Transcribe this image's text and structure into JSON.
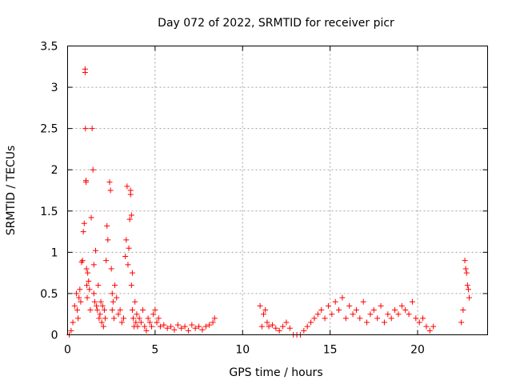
{
  "chart_data": {
    "type": "scatter",
    "title": "Day 072 of 2022, SRMTID for receiver picr",
    "xlabel": "GPS time / hours",
    "ylabel": "SRMTID / TECUs",
    "xlim": [
      0,
      24
    ],
    "ylim": [
      0,
      3.5
    ],
    "xticks": [
      0,
      5,
      10,
      15,
      20
    ],
    "xtick_labels": [
      "0",
      "5",
      "10",
      "15",
      "20"
    ],
    "yticks": [
      0,
      0.5,
      1,
      1.5,
      2,
      2.5,
      3,
      3.5
    ],
    "ytick_labels": [
      "0",
      "0.5",
      "1",
      "1.5",
      "2",
      "2.5",
      "3",
      "3.5"
    ],
    "grid": true,
    "marker": "+",
    "color": "#ff0000",
    "series": [
      {
        "name": "picr",
        "x": [
          0.1,
          0.2,
          0.3,
          0.4,
          0.5,
          0.55,
          0.6,
          0.65,
          0.7,
          0.75,
          0.8,
          0.85,
          0.9,
          0.95,
          1.0,
          1.0,
          1.02,
          1.05,
          1.05,
          1.08,
          1.1,
          1.12,
          1.15,
          1.2,
          1.25,
          1.3,
          1.35,
          1.4,
          1.45,
          1.5,
          1.5,
          1.55,
          1.6,
          1.65,
          1.7,
          1.75,
          1.8,
          1.85,
          1.9,
          1.95,
          2.0,
          2.05,
          2.1,
          2.15,
          2.2,
          2.25,
          2.3,
          2.4,
          2.45,
          2.5,
          2.55,
          2.55,
          2.6,
          2.65,
          2.7,
          2.8,
          2.9,
          3.0,
          3.1,
          3.2,
          3.3,
          3.35,
          3.4,
          3.45,
          3.5,
          3.55,
          3.6,
          3.6,
          3.65,
          3.65,
          3.7,
          3.7,
          3.75,
          3.8,
          3.85,
          3.9,
          3.95,
          4.0,
          4.1,
          4.2,
          4.3,
          4.4,
          4.5,
          4.6,
          4.7,
          4.8,
          4.9,
          5.0,
          5.1,
          5.2,
          5.3,
          5.5,
          5.7,
          5.9,
          6.1,
          6.3,
          6.5,
          6.7,
          6.9,
          7.1,
          7.3,
          7.5,
          7.7,
          7.9,
          8.1,
          8.3,
          8.4,
          11.0,
          11.1,
          11.2,
          11.3,
          11.4,
          11.5,
          11.7,
          11.9,
          12.1,
          12.3,
          12.5,
          12.7,
          12.9,
          13.1,
          13.3,
          13.5,
          13.7,
          13.9,
          14.1,
          14.3,
          14.5,
          14.7,
          14.9,
          15.1,
          15.3,
          15.5,
          15.7,
          15.9,
          16.1,
          16.3,
          16.5,
          16.7,
          16.9,
          17.1,
          17.3,
          17.5,
          17.7,
          17.9,
          18.1,
          18.3,
          18.5,
          18.7,
          18.9,
          19.1,
          19.3,
          19.5,
          19.7,
          19.9,
          20.1,
          20.3,
          20.5,
          20.7,
          20.9,
          22.5,
          22.6,
          22.7,
          22.75,
          22.8,
          22.85,
          22.9,
          22.95
        ],
        "y": [
          0.0,
          0.05,
          0.15,
          0.35,
          0.5,
          0.3,
          0.2,
          0.45,
          0.55,
          0.4,
          0.88,
          0.9,
          1.25,
          1.35,
          3.22,
          3.18,
          2.5,
          1.87,
          1.85,
          0.8,
          0.6,
          0.45,
          0.75,
          0.65,
          0.55,
          0.3,
          1.42,
          2.5,
          2.0,
          0.85,
          0.5,
          0.4,
          1.02,
          0.35,
          0.3,
          0.6,
          0.2,
          0.25,
          0.4,
          0.15,
          0.35,
          0.1,
          0.3,
          0.2,
          0.9,
          1.32,
          1.15,
          1.85,
          1.75,
          0.8,
          0.5,
          0.3,
          0.4,
          0.2,
          0.6,
          0.45,
          0.25,
          0.3,
          0.15,
          0.2,
          0.95,
          1.15,
          1.8,
          0.85,
          1.05,
          1.4,
          1.7,
          1.75,
          1.45,
          0.6,
          0.75,
          0.3,
          0.2,
          0.1,
          0.4,
          0.15,
          0.25,
          0.1,
          0.2,
          0.15,
          0.3,
          0.1,
          0.05,
          0.2,
          0.15,
          0.1,
          0.25,
          0.3,
          0.15,
          0.2,
          0.1,
          0.12,
          0.08,
          0.1,
          0.06,
          0.12,
          0.08,
          0.1,
          0.05,
          0.12,
          0.08,
          0.1,
          0.06,
          0.1,
          0.12,
          0.15,
          0.2,
          0.35,
          0.1,
          0.25,
          0.3,
          0.15,
          0.1,
          0.12,
          0.08,
          0.05,
          0.1,
          0.15,
          0.08,
          0.0,
          0.0,
          0.0,
          0.05,
          0.1,
          0.15,
          0.2,
          0.25,
          0.3,
          0.2,
          0.35,
          0.25,
          0.4,
          0.3,
          0.45,
          0.2,
          0.35,
          0.25,
          0.3,
          0.2,
          0.4,
          0.15,
          0.25,
          0.3,
          0.2,
          0.35,
          0.15,
          0.25,
          0.2,
          0.3,
          0.25,
          0.35,
          0.3,
          0.25,
          0.4,
          0.2,
          0.15,
          0.2,
          0.1,
          0.05,
          0.1,
          0.15,
          0.3,
          0.9,
          0.8,
          0.75,
          0.6,
          0.55,
          0.45
        ]
      }
    ]
  }
}
